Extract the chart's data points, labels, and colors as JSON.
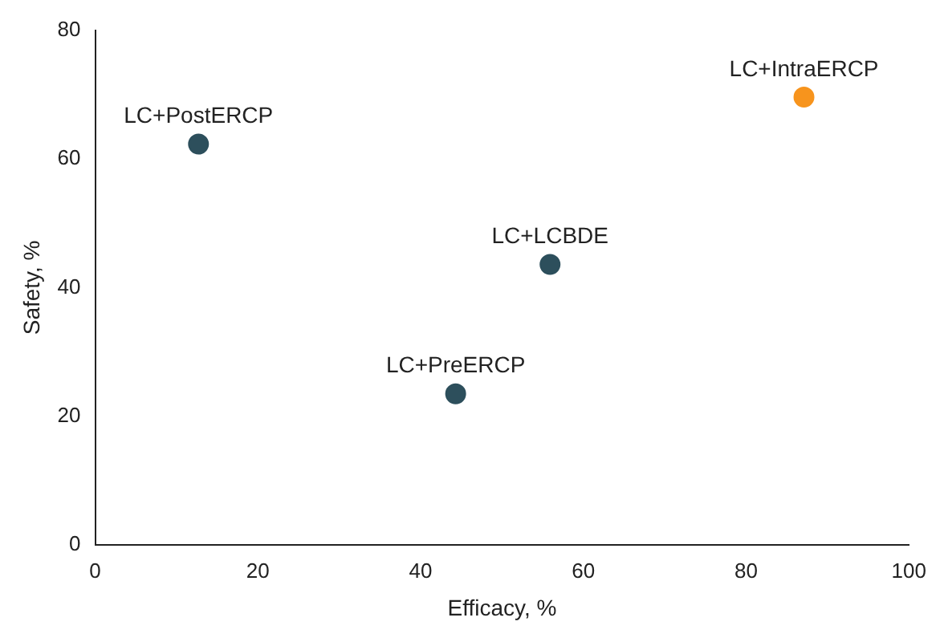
{
  "chart_data": {
    "type": "scatter",
    "xlabel": "Efficacy, %",
    "ylabel": "Safety, %",
    "x": [
      12.7,
      44.3,
      55.9,
      87.1
    ],
    "values": [
      62.3,
      23.5,
      43.6,
      69.6
    ],
    "colors": [
      "#2d4f5c",
      "#2d4f5c",
      "#2d4f5c",
      "#f7941d"
    ],
    "xlim": [
      0,
      100
    ],
    "xticks": [
      0,
      20,
      40,
      60,
      80,
      100
    ],
    "ylim": [
      0,
      80
    ],
    "yticks": [
      0,
      20,
      40,
      60,
      80
    ],
    "grid": false,
    "legend": false,
    "marker": "circle",
    "annotations": [
      {
        "text": "LC+PostERCP",
        "x": 12.7,
        "y": 62.3
      },
      {
        "text": "LC+PreERCP",
        "x": 44.3,
        "y": 23.5
      },
      {
        "text": "LC+LCBDE",
        "x": 55.9,
        "y": 43.6
      },
      {
        "text": "LC+IntraERCP",
        "x": 87.1,
        "y": 69.6
      }
    ]
  }
}
